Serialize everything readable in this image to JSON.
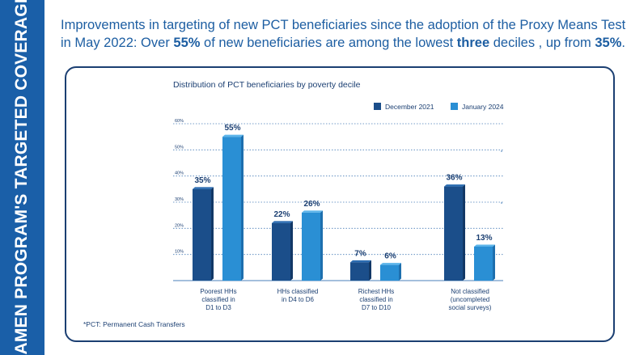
{
  "side_title": "AMEN PROGRAM'S TARGETED COVERAGE",
  "headline": {
    "p1": "Improvements in targeting of new PCT beneficiaries since the adoption of the Proxy Means Test in May 2022: Over ",
    "b1": "55%",
    "p2": " of new beneficiaries are among the lowest ",
    "b2": "three",
    "p3": " deciles , up from ",
    "b3": "35%",
    "p4": "."
  },
  "footnote": "*PCT: Permanent Cash Transfers",
  "colors": {
    "banner": "#1a5fa8",
    "dec2021_front": "#1b4e8a",
    "dec2021_side": "#123866",
    "dec2021_top": "#2a6bb0",
    "jan2024_front": "#2a8fd4",
    "jan2024_side": "#1d6fae",
    "jan2024_top": "#5cb4ea",
    "text": "#1b3f72",
    "grid": "#4a7fb8"
  },
  "chart_data": {
    "type": "bar",
    "title": "Distribution of PCT beneficiaries by poverty decile",
    "categories": [
      [
        "Poorest HHs",
        "classified in",
        "D1 to D3"
      ],
      [
        "HHs classified",
        "in D4 to D6"
      ],
      [
        "Richest HHs",
        "classified in",
        "D7 to D10"
      ],
      [
        "Not classified",
        "(uncompleted",
        "social surveys)"
      ]
    ],
    "series": [
      {
        "name": "December 2021",
        "values": [
          35,
          22,
          7,
          36
        ],
        "labels": [
          "35%",
          "22%",
          "7%",
          "36%"
        ]
      },
      {
        "name": "January 2024",
        "values": [
          55,
          26,
          6,
          13
        ],
        "labels": [
          "55%",
          "26%",
          "6%",
          "13%"
        ]
      }
    ],
    "ylim": [
      0,
      60
    ],
    "yticks": [
      "10%",
      "20%",
      "30%",
      "40%",
      "50%",
      "60%"
    ],
    "ytick_values": [
      10,
      20,
      30,
      40,
      50,
      60
    ],
    "xlabel": "",
    "ylabel": "",
    "grid": true,
    "legend": "top-right"
  }
}
